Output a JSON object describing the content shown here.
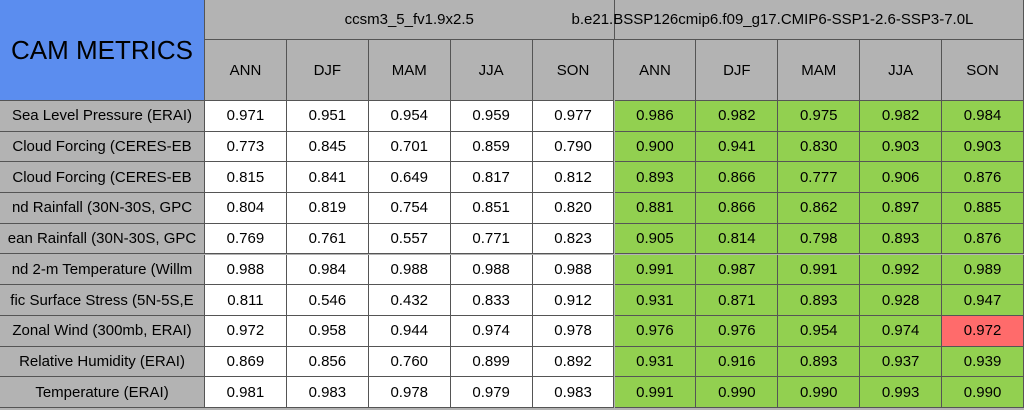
{
  "header": {
    "title": "CAM METRICS",
    "cases": [
      {
        "name": "ccsm3_5_fv1.9x2.5",
        "fill": "#ffffff"
      },
      {
        "name": "b.e21.BSSP126cmip6.f09_g17.CMIP6-SSP1-2.6-SSP3-7.0L",
        "fill": "#92d050"
      }
    ],
    "seasons": [
      "ANN",
      "DJF",
      "MAM",
      "JJA",
      "SON"
    ]
  },
  "table": {
    "rows": [
      {
        "label": "Sea Level Pressure (ERAI)",
        "values": [
          "0.971",
          "0.951",
          "0.954",
          "0.959",
          "0.977",
          "0.986",
          "0.982",
          "0.975",
          "0.982",
          "0.984"
        ]
      },
      {
        "label": "Cloud Forcing (CERES-EB",
        "values": [
          "0.773",
          "0.845",
          "0.701",
          "0.859",
          "0.790",
          "0.900",
          "0.941",
          "0.830",
          "0.903",
          "0.903"
        ]
      },
      {
        "label": "Cloud Forcing (CERES-EB",
        "values": [
          "0.815",
          "0.841",
          "0.649",
          "0.817",
          "0.812",
          "0.893",
          "0.866",
          "0.777",
          "0.906",
          "0.876"
        ]
      },
      {
        "label": "nd Rainfall (30N-30S, GPC",
        "values": [
          "0.804",
          "0.819",
          "0.754",
          "0.851",
          "0.820",
          "0.881",
          "0.866",
          "0.862",
          "0.897",
          "0.885"
        ]
      },
      {
        "label": "ean Rainfall (30N-30S, GPC",
        "values": [
          "0.769",
          "0.761",
          "0.557",
          "0.771",
          "0.823",
          "0.905",
          "0.814",
          "0.798",
          "0.893",
          "0.876"
        ]
      },
      {
        "label": "nd 2-m Temperature (Willm",
        "values": [
          "0.988",
          "0.984",
          "0.988",
          "0.988",
          "0.988",
          "0.991",
          "0.987",
          "0.991",
          "0.992",
          "0.989"
        ]
      },
      {
        "label": "fic Surface Stress (5N-5S,E",
        "values": [
          "0.811",
          "0.546",
          "0.432",
          "0.833",
          "0.912",
          "0.931",
          "0.871",
          "0.893",
          "0.928",
          "0.947"
        ]
      },
      {
        "label": "Zonal Wind (300mb, ERAI)",
        "values": [
          "0.972",
          "0.958",
          "0.944",
          "0.974",
          "0.978",
          "0.976",
          "0.976",
          "0.954",
          "0.974",
          "0.972"
        ]
      },
      {
        "label": "Relative Humidity (ERAI)",
        "values": [
          "0.869",
          "0.856",
          "0.760",
          "0.899",
          "0.892",
          "0.931",
          "0.916",
          "0.893",
          "0.937",
          "0.939"
        ]
      },
      {
        "label": "Temperature (ERAI)",
        "values": [
          "0.981",
          "0.983",
          "0.978",
          "0.979",
          "0.983",
          "0.991",
          "0.990",
          "0.990",
          "0.993",
          "0.990"
        ]
      }
    ],
    "highlight": {
      "row": 7,
      "column": 9,
      "fill": "#ff6b6b"
    }
  }
}
